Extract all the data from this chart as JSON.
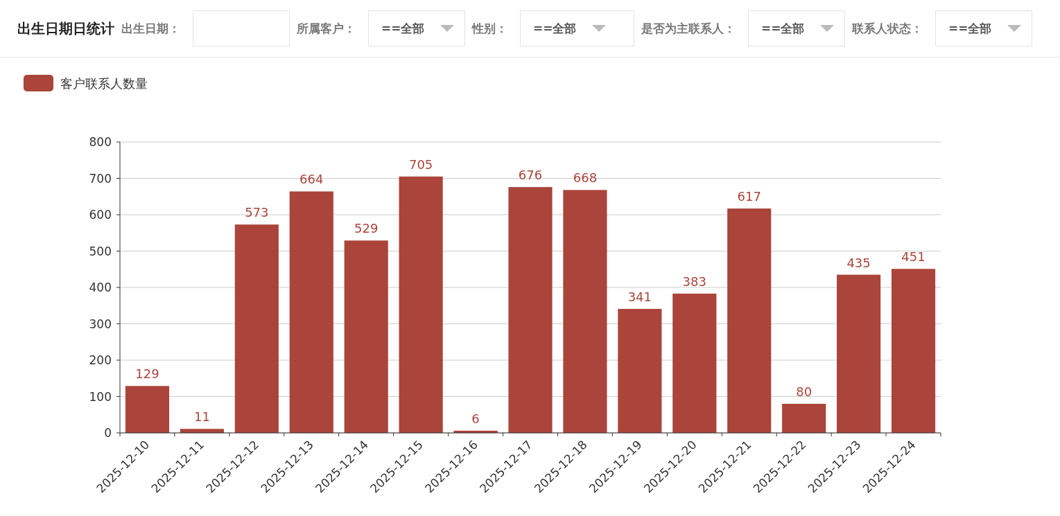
{
  "chart_data": {
    "type": "bar",
    "title": "出生日期日统计",
    "annotations": [
      "出生日期：",
      "所属客户：",
      "==全部",
      "性别：",
      "==全部",
      "是否为主联系人：",
      "==全部",
      "联系人状态：",
      "==全部"
    ],
    "categories": [
      "2025-12-10",
      "2025-12-11",
      "2025-12-12",
      "2025-12-13",
      "2025-12-14",
      "2025-12-15",
      "2025-12-16",
      "2025-12-17",
      "2025-12-18",
      "2025-12-19",
      "2025-12-20",
      "2025-12-21",
      "2025-12-22",
      "2025-12-23",
      "2025-12-24"
    ],
    "series": [
      {
        "name": "客户联系人数量",
        "color": "#ab443a",
        "values": [
          129,
          11,
          573,
          664,
          529,
          705,
          6,
          676,
          668,
          341,
          383,
          617,
          80,
          435,
          451
        ]
      }
    ],
    "ylim": [
      0,
      800
    ],
    "yticks": [
      0,
      100,
      200,
      300,
      400,
      500,
      600,
      700,
      800
    ],
    "grid": "y",
    "legend": "top left",
    "data_labels": true
  }
}
